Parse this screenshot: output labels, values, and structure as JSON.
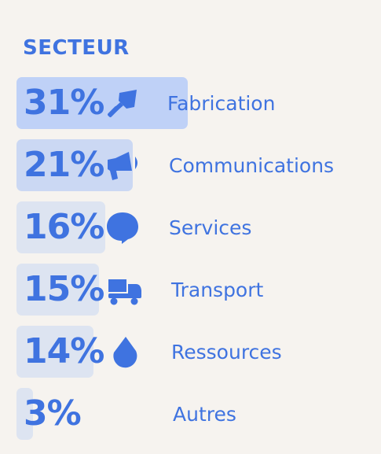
{
  "colors": {
    "accent": "#3f73e0",
    "bar_light": "#dde4f1",
    "bar_top": "#bfd1f7",
    "bar_second": "#cbd8f3",
    "background": "#f6f3ef"
  },
  "chart_data": {
    "type": "bar",
    "title": "SECTEUR",
    "unit": "%",
    "categories": [
      "Fabrication",
      "Communications",
      "Services",
      "Transport",
      "Ressources",
      "Autres"
    ],
    "values": [
      31,
      21,
      16,
      15,
      14,
      3
    ],
    "value_labels": [
      "31%",
      "21%",
      "16%",
      "15%",
      "14%",
      "3%"
    ],
    "icons": [
      "shovel-icon",
      "megaphone-icon",
      "speech-bubble-icon",
      "truck-icon",
      "drop-icon",
      ""
    ]
  }
}
